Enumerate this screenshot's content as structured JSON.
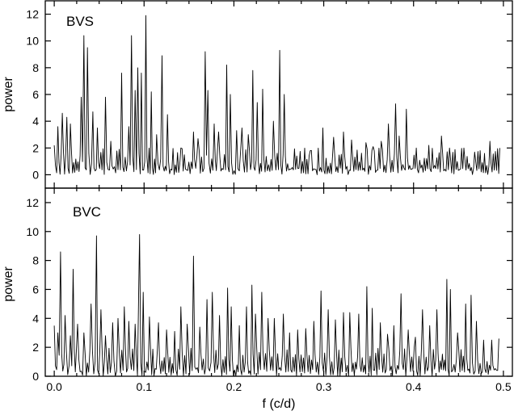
{
  "chart_data": {
    "type": "line",
    "layout": "two stacked panels sharing the x axis",
    "xlabel": "f (c/d)",
    "xlim": [
      -0.01,
      0.51
    ],
    "xticks": [
      "0.0",
      "0.1",
      "0.2",
      "0.3",
      "0.4",
      "0.5"
    ],
    "xtick_values": [
      0,
      0.1,
      0.2,
      0.3,
      0.4,
      0.5
    ],
    "panels": [
      {
        "label": "BVS",
        "ylabel": "power",
        "ylim": [
          -1,
          13
        ],
        "yticks": [
          "0",
          "2",
          "4",
          "6",
          "8",
          "10",
          "12"
        ],
        "ytick_values": [
          0,
          2,
          4,
          6,
          8,
          10,
          12
        ],
        "peaks": [
          [
            0.0,
            2.2
          ],
          [
            0.004,
            3.6
          ],
          [
            0.009,
            4.6
          ],
          [
            0.014,
            4.3
          ],
          [
            0.018,
            3.8
          ],
          [
            0.03,
            5.8
          ],
          [
            0.033,
            10.4
          ],
          [
            0.037,
            9.5
          ],
          [
            0.043,
            4.7
          ],
          [
            0.048,
            3.5
          ],
          [
            0.057,
            5.8
          ],
          [
            0.063,
            2.5
          ],
          [
            0.075,
            7.6
          ],
          [
            0.083,
            3.6
          ],
          [
            0.086,
            10.4
          ],
          [
            0.09,
            6.3
          ],
          [
            0.093,
            8.0
          ],
          [
            0.097,
            7.6
          ],
          [
            0.102,
            11.9
          ],
          [
            0.108,
            6.2
          ],
          [
            0.114,
            3.0
          ],
          [
            0.12,
            8.9
          ],
          [
            0.126,
            4.5
          ],
          [
            0.141,
            2.0
          ],
          [
            0.155,
            3.2
          ],
          [
            0.16,
            2.7
          ],
          [
            0.168,
            9.2
          ],
          [
            0.171,
            6.3
          ],
          [
            0.178,
            3.8
          ],
          [
            0.183,
            3.2
          ],
          [
            0.192,
            8.2
          ],
          [
            0.196,
            6.0
          ],
          [
            0.203,
            3.3
          ],
          [
            0.209,
            3.5
          ],
          [
            0.216,
            3.0
          ],
          [
            0.221,
            7.8
          ],
          [
            0.226,
            5.4
          ],
          [
            0.232,
            6.4
          ],
          [
            0.244,
            4.0
          ],
          [
            0.251,
            9.3
          ],
          [
            0.256,
            6.0
          ],
          [
            0.27,
            1.4
          ],
          [
            0.285,
            1.8
          ],
          [
            0.299,
            3.5
          ],
          [
            0.311,
            2.8
          ],
          [
            0.322,
            3.2
          ],
          [
            0.331,
            2.6
          ],
          [
            0.347,
            2.4
          ],
          [
            0.355,
            2.1
          ],
          [
            0.364,
            2.5
          ],
          [
            0.372,
            3.8
          ],
          [
            0.38,
            5.3
          ],
          [
            0.384,
            2.9
          ],
          [
            0.392,
            4.9
          ],
          [
            0.403,
            2.0
          ],
          [
            0.417,
            2.2
          ],
          [
            0.431,
            2.9
          ],
          [
            0.44,
            2.0
          ],
          [
            0.456,
            2.0
          ],
          [
            0.468,
            1.7
          ],
          [
            0.485,
            2.5
          ],
          [
            0.496,
            2.0
          ]
        ]
      },
      {
        "label": "BVC",
        "ylabel": "power",
        "ylim": [
          0,
          13
        ],
        "yticks": [
          "0",
          "2",
          "4",
          "6",
          "8",
          "10",
          "12"
        ],
        "ytick_values": [
          0,
          2,
          4,
          6,
          8,
          10,
          12
        ],
        "peaks": [
          [
            0.0,
            3.5
          ],
          [
            0.004,
            3.0
          ],
          [
            0.007,
            8.6
          ],
          [
            0.012,
            4.2
          ],
          [
            0.018,
            2.8
          ],
          [
            0.021,
            7.4
          ],
          [
            0.026,
            3.6
          ],
          [
            0.033,
            3.0
          ],
          [
            0.041,
            5.0
          ],
          [
            0.047,
            9.7
          ],
          [
            0.052,
            4.6
          ],
          [
            0.057,
            2.8
          ],
          [
            0.065,
            3.7
          ],
          [
            0.071,
            4.0
          ],
          [
            0.078,
            4.8
          ],
          [
            0.083,
            3.8
          ],
          [
            0.09,
            3.6
          ],
          [
            0.094,
            5.9
          ],
          [
            0.095,
            9.8
          ],
          [
            0.099,
            5.8
          ],
          [
            0.106,
            4.1
          ],
          [
            0.116,
            3.7
          ],
          [
            0.125,
            3.2
          ],
          [
            0.134,
            3.1
          ],
          [
            0.141,
            4.8
          ],
          [
            0.148,
            3.6
          ],
          [
            0.155,
            8.3
          ],
          [
            0.162,
            3.4
          ],
          [
            0.17,
            5.3
          ],
          [
            0.176,
            5.8
          ],
          [
            0.184,
            4.2
          ],
          [
            0.193,
            6.1
          ],
          [
            0.197,
            4.8
          ],
          [
            0.206,
            3.5
          ],
          [
            0.214,
            4.8
          ],
          [
            0.22,
            6.3
          ],
          [
            0.224,
            4.3
          ],
          [
            0.231,
            5.8
          ],
          [
            0.238,
            4.0
          ],
          [
            0.245,
            4.0
          ],
          [
            0.255,
            4.3
          ],
          [
            0.262,
            3.0
          ],
          [
            0.271,
            3.2
          ],
          [
            0.28,
            3.3
          ],
          [
            0.289,
            3.8
          ],
          [
            0.297,
            5.9
          ],
          [
            0.305,
            4.6
          ],
          [
            0.313,
            3.9
          ],
          [
            0.322,
            4.4
          ],
          [
            0.329,
            4.4
          ],
          [
            0.339,
            4.3
          ],
          [
            0.348,
            6.2
          ],
          [
            0.354,
            4.7
          ],
          [
            0.363,
            3.7
          ],
          [
            0.371,
            2.9
          ],
          [
            0.378,
            3.5
          ],
          [
            0.386,
            5.7
          ],
          [
            0.394,
            3.2
          ],
          [
            0.402,
            2.7
          ],
          [
            0.41,
            4.6
          ],
          [
            0.418,
            3.5
          ],
          [
            0.426,
            4.6
          ],
          [
            0.437,
            6.7
          ],
          [
            0.441,
            6.0
          ],
          [
            0.449,
            3.0
          ],
          [
            0.458,
            5.0
          ],
          [
            0.464,
            5.6
          ],
          [
            0.47,
            3.8
          ],
          [
            0.478,
            2.5
          ],
          [
            0.487,
            2.5
          ],
          [
            0.495,
            2.6
          ]
        ]
      }
    ],
    "line_color": "#000000",
    "grid": false,
    "legend": "none"
  }
}
